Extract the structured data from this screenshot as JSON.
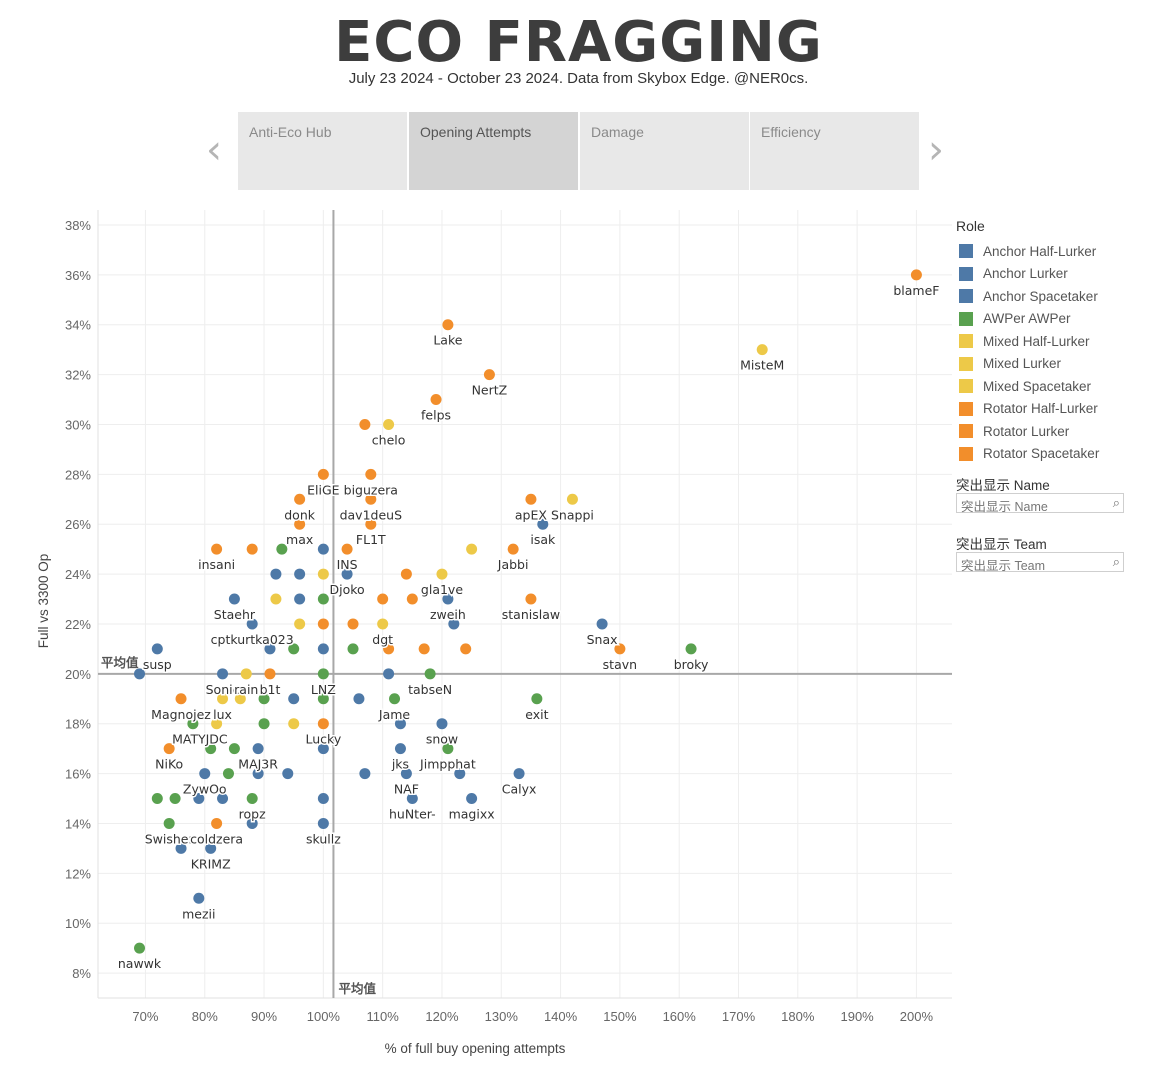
{
  "header": {
    "title": "ECO FRAGGING",
    "subtitle": "July 23 2024 - October 23 2024.  Data from Skybox Edge. @NER0cs."
  },
  "nav": {
    "prev_icon": "chevron-left-icon",
    "next_icon": "chevron-right-icon",
    "tabs": [
      {
        "label": "Anti-Eco Hub",
        "active": false
      },
      {
        "label": "Opening Attempts",
        "active": true
      },
      {
        "label": "Damage",
        "active": false
      },
      {
        "label": "Efficiency",
        "active": false
      }
    ]
  },
  "legend": {
    "title": "Role",
    "items": [
      {
        "label": "Anchor Half-Lurker",
        "color": "#4e79a7"
      },
      {
        "label": "Anchor Lurker",
        "color": "#4e79a7"
      },
      {
        "label": "Anchor Spacetaker",
        "color": "#4e79a7"
      },
      {
        "label": "AWPer AWPer",
        "color": "#59a14f"
      },
      {
        "label": "Mixed Half-Lurker",
        "color": "#edc948"
      },
      {
        "label": "Mixed Lurker",
        "color": "#edc948"
      },
      {
        "label": "Mixed Spacetaker",
        "color": "#edc948"
      },
      {
        "label": "Rotator Half-Lurker",
        "color": "#f28e2b"
      },
      {
        "label": "Rotator Lurker",
        "color": "#f28e2b"
      },
      {
        "label": "Rotator Spacetaker",
        "color": "#f28e2b"
      }
    ]
  },
  "filters": {
    "name_label": "突出显示 Name",
    "name_placeholder": "突出显示 Name",
    "team_label": "突出显示 Team",
    "team_placeholder": "突出显示 Team",
    "search_icon": "search-icon"
  },
  "colors": {
    "anchor": "#4e79a7",
    "awper": "#59a14f",
    "mixed": "#edc948",
    "rotator": "#f28e2b",
    "refline": "#a8a8a8",
    "grid": "#eeeeee"
  },
  "chart_data": {
    "type": "scatter",
    "title": "",
    "xlabel": "% of full buy opening attempts",
    "ylabel": "Full vs 3300 Op",
    "x_unit": "%",
    "y_unit": "%",
    "xlim": [
      62,
      206
    ],
    "ylim": [
      7.0,
      38.6
    ],
    "x_ticks": [
      70,
      80,
      90,
      100,
      110,
      120,
      130,
      140,
      150,
      160,
      170,
      180,
      190,
      200
    ],
    "y_ticks": [
      8,
      10,
      12,
      14,
      16,
      18,
      20,
      22,
      24,
      26,
      28,
      30,
      32,
      34,
      36,
      38
    ],
    "grid": true,
    "legend_position": "right",
    "reference_lines": {
      "x": {
        "value": 101.7,
        "label": "平均值"
      },
      "y": {
        "value": 20.0,
        "label": "平均值"
      }
    },
    "points": [
      {
        "x": 200,
        "y": 36,
        "role": "rotator",
        "label": "blameF"
      },
      {
        "x": 121,
        "y": 34,
        "role": "rotator",
        "label": "Lake"
      },
      {
        "x": 174,
        "y": 33,
        "role": "mixed",
        "label": "MisteM"
      },
      {
        "x": 128,
        "y": 32,
        "role": "rotator",
        "label": "NertZ"
      },
      {
        "x": 119,
        "y": 31,
        "role": "rotator",
        "label": "felps"
      },
      {
        "x": 107,
        "y": 30,
        "role": "rotator",
        "label": ""
      },
      {
        "x": 111,
        "y": 30,
        "role": "mixed",
        "label": "chelo"
      },
      {
        "x": 100,
        "y": 28,
        "role": "rotator",
        "label": "EliGE"
      },
      {
        "x": 108,
        "y": 28,
        "role": "rotator",
        "label": "biguzera"
      },
      {
        "x": 96,
        "y": 27,
        "role": "rotator",
        "label": "donk"
      },
      {
        "x": 108,
        "y": 27,
        "role": "rotator",
        "label": "dav1deuS"
      },
      {
        "x": 135,
        "y": 27,
        "role": "rotator",
        "label": "apEX"
      },
      {
        "x": 142,
        "y": 27,
        "role": "mixed",
        "label": "Snappi"
      },
      {
        "x": 96,
        "y": 26,
        "role": "rotator",
        "label": "max"
      },
      {
        "x": 108,
        "y": 26,
        "role": "rotator",
        "label": "FL1T"
      },
      {
        "x": 137,
        "y": 26,
        "role": "anchor",
        "label": "isak"
      },
      {
        "x": 82,
        "y": 25,
        "role": "rotator",
        "label": "insani"
      },
      {
        "x": 88,
        "y": 25,
        "role": "rotator",
        "label": ""
      },
      {
        "x": 93,
        "y": 25,
        "role": "awper",
        "label": ""
      },
      {
        "x": 100,
        "y": 25,
        "role": "anchor",
        "label": ""
      },
      {
        "x": 104,
        "y": 25,
        "role": "rotator",
        "label": "INS"
      },
      {
        "x": 125,
        "y": 25,
        "role": "mixed",
        "label": ""
      },
      {
        "x": 132,
        "y": 25,
        "role": "rotator",
        "label": "Jabbi"
      },
      {
        "x": 92,
        "y": 24,
        "role": "anchor",
        "label": ""
      },
      {
        "x": 96,
        "y": 24,
        "role": "anchor",
        "label": ""
      },
      {
        "x": 100,
        "y": 24,
        "role": "mixed",
        "label": ""
      },
      {
        "x": 104,
        "y": 24,
        "role": "anchor",
        "label": "Djoko"
      },
      {
        "x": 114,
        "y": 24,
        "role": "rotator",
        "label": ""
      },
      {
        "x": 120,
        "y": 24,
        "role": "mixed",
        "label": "gla1ve"
      },
      {
        "x": 85,
        "y": 23,
        "role": "anchor",
        "label": "Staehr"
      },
      {
        "x": 92,
        "y": 23,
        "role": "mixed",
        "label": ""
      },
      {
        "x": 96,
        "y": 23,
        "role": "anchor",
        "label": ""
      },
      {
        "x": 100,
        "y": 23,
        "role": "awper",
        "label": ""
      },
      {
        "x": 110,
        "y": 23,
        "role": "rotator",
        "label": ""
      },
      {
        "x": 115,
        "y": 23,
        "role": "rotator",
        "label": ""
      },
      {
        "x": 121,
        "y": 23,
        "role": "anchor",
        "label": "zweih"
      },
      {
        "x": 135,
        "y": 23,
        "role": "rotator",
        "label": "stanislaw"
      },
      {
        "x": 88,
        "y": 22,
        "role": "anchor",
        "label": "cptkurtka023"
      },
      {
        "x": 96,
        "y": 22,
        "role": "mixed",
        "label": ""
      },
      {
        "x": 100,
        "y": 22,
        "role": "rotator",
        "label": ""
      },
      {
        "x": 105,
        "y": 22,
        "role": "rotator",
        "label": ""
      },
      {
        "x": 110,
        "y": 22,
        "role": "mixed",
        "label": "dgt"
      },
      {
        "x": 122,
        "y": 22,
        "role": "anchor",
        "label": ""
      },
      {
        "x": 147,
        "y": 22,
        "role": "anchor",
        "label": "Snax"
      },
      {
        "x": 72,
        "y": 21,
        "role": "anchor",
        "label": "susp"
      },
      {
        "x": 91,
        "y": 21,
        "role": "anchor",
        "label": ""
      },
      {
        "x": 95,
        "y": 21,
        "role": "awper",
        "label": ""
      },
      {
        "x": 100,
        "y": 21,
        "role": "anchor",
        "label": ""
      },
      {
        "x": 105,
        "y": 21,
        "role": "awper",
        "label": ""
      },
      {
        "x": 111,
        "y": 21,
        "role": "rotator",
        "label": ""
      },
      {
        "x": 117,
        "y": 21,
        "role": "rotator",
        "label": ""
      },
      {
        "x": 124,
        "y": 21,
        "role": "rotator",
        "label": ""
      },
      {
        "x": 150,
        "y": 21,
        "role": "rotator",
        "label": "stavn"
      },
      {
        "x": 162,
        "y": 21,
        "role": "awper",
        "label": "broky"
      },
      {
        "x": 69,
        "y": 20,
        "role": "anchor",
        "label": ""
      },
      {
        "x": 83,
        "y": 20,
        "role": "anchor",
        "label": "Sonic"
      },
      {
        "x": 87,
        "y": 20,
        "role": "mixed",
        "label": "rain"
      },
      {
        "x": 91,
        "y": 20,
        "role": "rotator",
        "label": "b1t"
      },
      {
        "x": 100,
        "y": 20,
        "role": "awper",
        "label": "LNZ"
      },
      {
        "x": 111,
        "y": 20,
        "role": "anchor",
        "label": ""
      },
      {
        "x": 118,
        "y": 20,
        "role": "awper",
        "label": "tabseN"
      },
      {
        "x": 76,
        "y": 19,
        "role": "rotator",
        "label": "Magnojez"
      },
      {
        "x": 83,
        "y": 19,
        "role": "mixed",
        "label": "lux"
      },
      {
        "x": 86,
        "y": 19,
        "role": "mixed",
        "label": ""
      },
      {
        "x": 90,
        "y": 19,
        "role": "awper",
        "label": ""
      },
      {
        "x": 95,
        "y": 19,
        "role": "anchor",
        "label": ""
      },
      {
        "x": 100,
        "y": 19,
        "role": "awper",
        "label": ""
      },
      {
        "x": 106,
        "y": 19,
        "role": "anchor",
        "label": ""
      },
      {
        "x": 112,
        "y": 19,
        "role": "awper",
        "label": "Jame"
      },
      {
        "x": 136,
        "y": 19,
        "role": "awper",
        "label": "exit"
      },
      {
        "x": 78,
        "y": 18,
        "role": "awper",
        "label": "MATYS"
      },
      {
        "x": 82,
        "y": 18,
        "role": "mixed",
        "label": "JDC"
      },
      {
        "x": 90,
        "y": 18,
        "role": "awper",
        "label": ""
      },
      {
        "x": 95,
        "y": 18,
        "role": "mixed",
        "label": ""
      },
      {
        "x": 100,
        "y": 18,
        "role": "rotator",
        "label": "Lucky"
      },
      {
        "x": 113,
        "y": 18,
        "role": "anchor",
        "label": ""
      },
      {
        "x": 120,
        "y": 18,
        "role": "anchor",
        "label": "snow"
      },
      {
        "x": 74,
        "y": 17,
        "role": "rotator",
        "label": "NiKo"
      },
      {
        "x": 81,
        "y": 17,
        "role": "awper",
        "label": ""
      },
      {
        "x": 85,
        "y": 17,
        "role": "awper",
        "label": ""
      },
      {
        "x": 89,
        "y": 17,
        "role": "anchor",
        "label": "MAJ3R"
      },
      {
        "x": 100,
        "y": 17,
        "role": "anchor",
        "label": ""
      },
      {
        "x": 113,
        "y": 17,
        "role": "anchor",
        "label": "jks"
      },
      {
        "x": 121,
        "y": 17,
        "role": "awper",
        "label": "Jimpphat"
      },
      {
        "x": 80,
        "y": 16,
        "role": "anchor",
        "label": "ZywOo"
      },
      {
        "x": 84,
        "y": 16,
        "role": "awper",
        "label": ""
      },
      {
        "x": 89,
        "y": 16,
        "role": "anchor",
        "label": ""
      },
      {
        "x": 94,
        "y": 16,
        "role": "anchor",
        "label": ""
      },
      {
        "x": 107,
        "y": 16,
        "role": "anchor",
        "label": ""
      },
      {
        "x": 114,
        "y": 16,
        "role": "anchor",
        "label": "NAF"
      },
      {
        "x": 123,
        "y": 16,
        "role": "anchor",
        "label": ""
      },
      {
        "x": 133,
        "y": 16,
        "role": "anchor",
        "label": "Calyx"
      },
      {
        "x": 72,
        "y": 15,
        "role": "awper",
        "label": ""
      },
      {
        "x": 75,
        "y": 15,
        "role": "awper",
        "label": ""
      },
      {
        "x": 79,
        "y": 15,
        "role": "anchor",
        "label": ""
      },
      {
        "x": 83,
        "y": 15,
        "role": "anchor",
        "label": ""
      },
      {
        "x": 88,
        "y": 15,
        "role": "awper",
        "label": "ropz"
      },
      {
        "x": 100,
        "y": 15,
        "role": "anchor",
        "label": ""
      },
      {
        "x": 115,
        "y": 15,
        "role": "anchor",
        "label": "huNter-"
      },
      {
        "x": 125,
        "y": 15,
        "role": "anchor",
        "label": "magixx"
      },
      {
        "x": 74,
        "y": 14,
        "role": "awper",
        "label": "Swisher"
      },
      {
        "x": 82,
        "y": 14,
        "role": "rotator",
        "label": "coldzera"
      },
      {
        "x": 88,
        "y": 14,
        "role": "anchor",
        "label": ""
      },
      {
        "x": 100,
        "y": 14,
        "role": "anchor",
        "label": "skullz"
      },
      {
        "x": 76,
        "y": 13,
        "role": "anchor",
        "label": ""
      },
      {
        "x": 81,
        "y": 13,
        "role": "anchor",
        "label": "KRIMZ"
      },
      {
        "x": 79,
        "y": 11,
        "role": "anchor",
        "label": "mezii"
      },
      {
        "x": 69,
        "y": 9,
        "role": "awper",
        "label": "nawwk"
      }
    ]
  }
}
